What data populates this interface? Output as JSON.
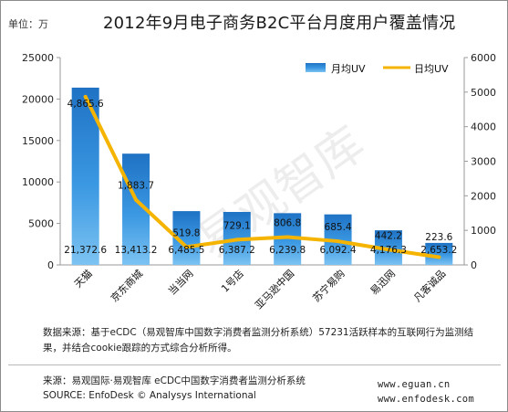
{
  "header": {
    "unit_label": "单位：万",
    "title": "2012年9月电子商务B2C平台月度用户覆盖情况"
  },
  "chart_data": {
    "type": "bar",
    "title": "2012年9月电子商务B2C平台月度用户覆盖情况",
    "categories": [
      "天猫",
      "京东商城",
      "当当网",
      "1号店",
      "亚马逊中国",
      "苏宁易购",
      "易迅网",
      "凡客诚品"
    ],
    "series": [
      {
        "name": "月均UV",
        "type": "bar",
        "axis": "left",
        "values": [
          21372.6,
          13413.2,
          6485.5,
          6387.2,
          6239.8,
          6092.4,
          4176.3,
          2653.2
        ],
        "labels": [
          "21,372.6",
          "13,413.2",
          "6,485.5",
          "6,387.2",
          "6,239.8",
          "6,092.4",
          "4,176.3",
          "2,653.2"
        ]
      },
      {
        "name": "日均UV",
        "type": "line",
        "axis": "right",
        "values": [
          4865.6,
          1883.7,
          519.8,
          729.1,
          806.8,
          685.4,
          442.2,
          223.6
        ],
        "labels": [
          "4,865.6",
          "1,883.7",
          "519.8",
          "729.1",
          "806.8",
          "685.4",
          "442.2",
          "223.6"
        ]
      }
    ],
    "ylim_left": [
      0,
      25000
    ],
    "yticks_left": [
      "0",
      "5000",
      "10000",
      "15000",
      "20000",
      "25000"
    ],
    "ylim_right": [
      0,
      6000
    ],
    "yticks_right": [
      "0",
      "1000",
      "2000",
      "3000",
      "4000",
      "5000",
      "6000"
    ],
    "legend_position": "top-right",
    "colors": {
      "bar": "#2e8ad6",
      "line": "#f5b400"
    },
    "watermark": "易观智库"
  },
  "footer": {
    "note": "数据来源：基于eCDC（易观智库中国数字消费者监测分析系统）57231活跃样本的互联网行为监测结果，并结合cookie跟踪的方式综合分析所得。",
    "source_cn": "来源：易观国际·易观智库 eCDC中国数字消费者监测分析系统",
    "source_en": "SOURCE: EnfoDesk © Analysys International",
    "url1": "www.eguan.cn",
    "url2": "www.enfodesk.com"
  }
}
